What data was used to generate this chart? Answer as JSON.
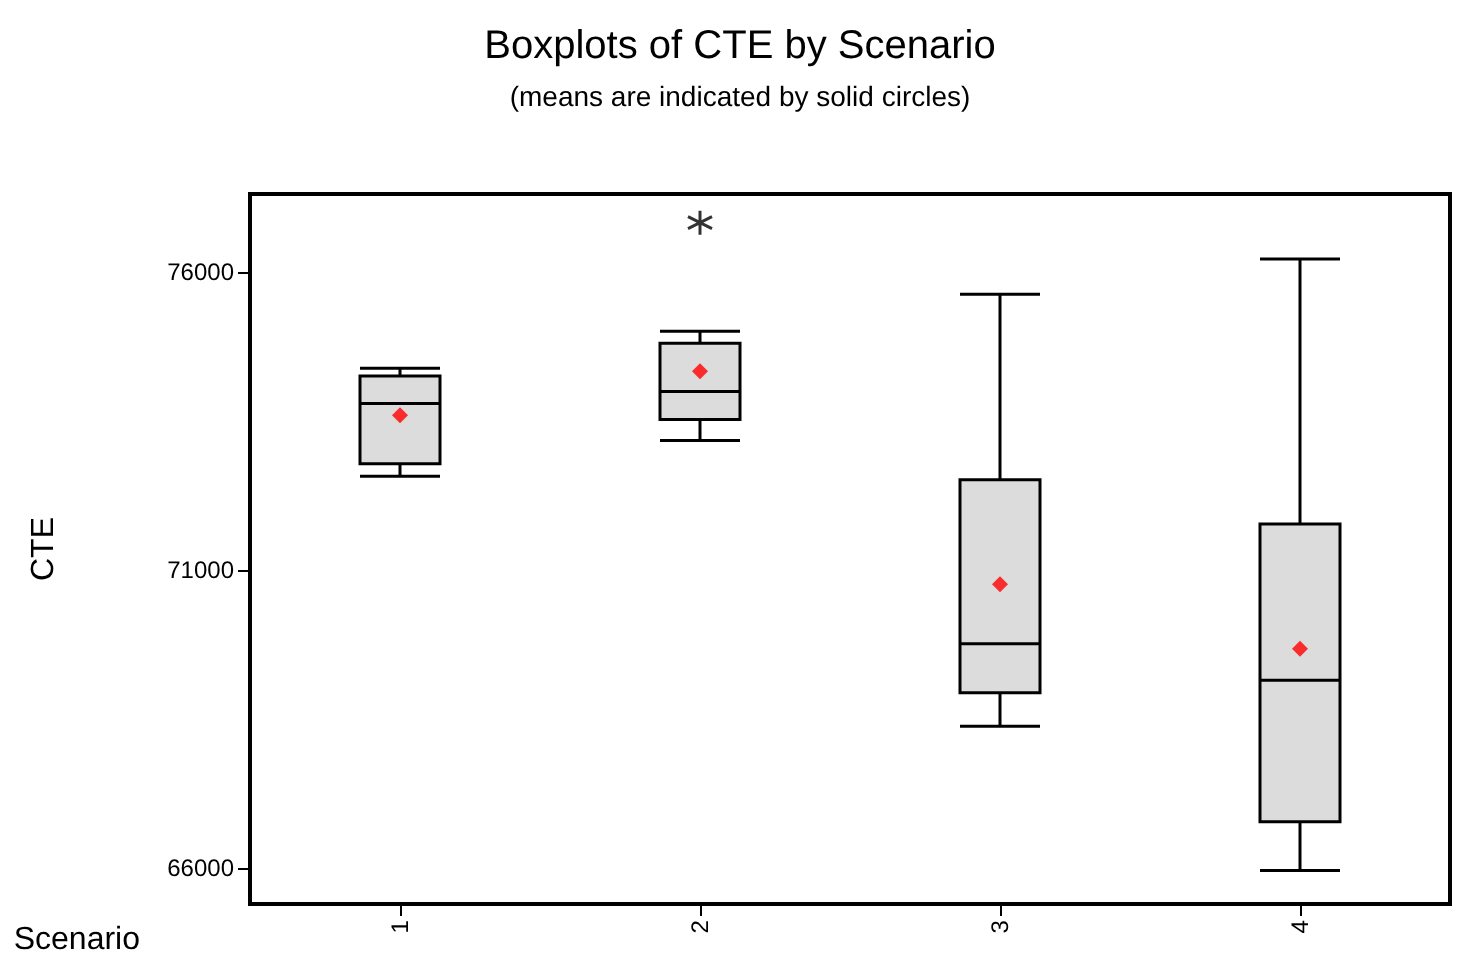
{
  "chart_data": {
    "type": "box",
    "title": "Boxplots of CTE by Scenario",
    "subtitle": "(means are indicated by solid circles)",
    "xlabel": "Scenario",
    "ylabel": "CTE",
    "categories": [
      "1",
      "2",
      "3",
      "4"
    ],
    "grid": false,
    "ylim": [
      65400,
      77300
    ],
    "yticks": [
      66000,
      71000,
      76000
    ],
    "series": [
      {
        "color": "#dcdcdc",
        "boxes": [
          {
            "low": 72570,
            "q1": 72780,
            "median": 73790,
            "q3": 74250,
            "high": 74380
          },
          {
            "low": 73170,
            "q1": 73520,
            "median": 73990,
            "q3": 74800,
            "high": 75000,
            "outliers": [
              76820
            ]
          },
          {
            "low": 68380,
            "q1": 68940,
            "median": 69760,
            "q3": 72510,
            "high": 75620
          },
          {
            "low": 65960,
            "q1": 66780,
            "median": 69150,
            "q3": 71770,
            "high": 76210
          }
        ]
      },
      {
        "type": "scatter",
        "color": "#ff0000",
        "marker": "diamond",
        "x": [
          "1",
          "2",
          "3",
          "4"
        ],
        "values": [
          73590,
          74330,
          70760,
          69680
        ]
      }
    ]
  }
}
